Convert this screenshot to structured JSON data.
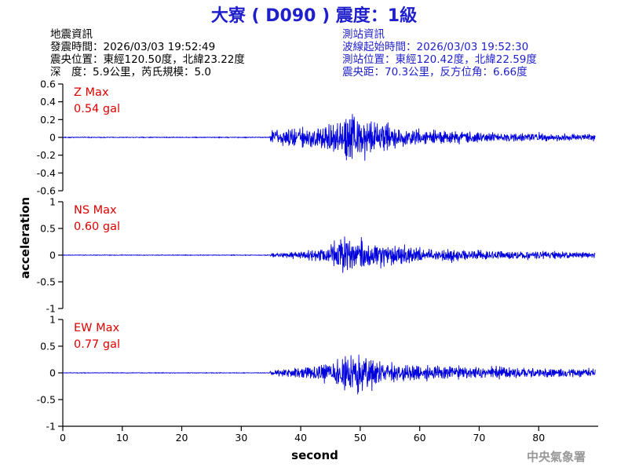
{
  "header": {
    "title": "大寮 ( D090 ) 震度：1級",
    "quake_info": {
      "heading": "地震資訊",
      "origin_time": "發震時間：2026/03/03 19:52:49",
      "epicenter": "震央位置：東經120.50度，北緯23.22度",
      "depth_magnitude": "深　度：5.9公里，芮氏規模：5.0"
    },
    "station_info": {
      "heading": "測站資訊",
      "wave_start": "波線起始時間：2026/03/03 19:52:30",
      "station_location": "測站位置：東經120.42度，北緯22.59度",
      "distance_azimuth": "震央距：70.3公里，反方位角：6.66度"
    }
  },
  "footer": {
    "agency": "中央氣象署"
  },
  "colors": {
    "title": "#1f1fcc",
    "info_left": "#000000",
    "info_right": "#1f1fcc",
    "trace": "#0000dd",
    "max_label": "#dd0000",
    "footer": "#999999"
  },
  "chart_data": {
    "type": "line",
    "xlabel": "second",
    "ylabel": "acceleration",
    "xlim": [
      0,
      90
    ],
    "x_ticks": [
      "0",
      "10",
      "20",
      "30",
      "40",
      "50",
      "60",
      "70",
      "80"
    ],
    "x_tick_values": [
      0,
      10,
      20,
      30,
      40,
      50,
      60,
      70,
      80
    ],
    "wave_onset_s": 34.8,
    "peak_time_s": 49.5,
    "panels": [
      {
        "component": "Z",
        "max_label": "Z Max",
        "max_value": "0.54 gal",
        "ylim": [
          -0.6,
          0.6
        ],
        "y_ticks": [
          "0.6",
          "0.4",
          "0.2",
          "0",
          "-0.2",
          "-0.4",
          "-0.6"
        ],
        "y_tick_values": [
          0.6,
          0.4,
          0.2,
          0,
          -0.2,
          -0.4,
          -0.6
        ],
        "pre_noise": 0.008,
        "envelope": [
          [
            34.8,
            0.15
          ],
          [
            38,
            0.18
          ],
          [
            42,
            0.22
          ],
          [
            46,
            0.32
          ],
          [
            49,
            0.54
          ],
          [
            52,
            0.35
          ],
          [
            56,
            0.2
          ],
          [
            62,
            0.13
          ],
          [
            70,
            0.1
          ],
          [
            80,
            0.08
          ],
          [
            89.5,
            0.07
          ]
        ]
      },
      {
        "component": "NS",
        "max_label": "NS Max",
        "max_value": "0.60 gal",
        "ylim": [
          -1,
          1
        ],
        "y_ticks": [
          "1",
          "0.5",
          "0",
          "-0.5",
          "-1"
        ],
        "y_tick_values": [
          1,
          0.5,
          0,
          -0.5,
          -1
        ],
        "pre_noise": 0.01,
        "envelope": [
          [
            34.8,
            0.05
          ],
          [
            38,
            0.1
          ],
          [
            42,
            0.18
          ],
          [
            45,
            0.35
          ],
          [
            48,
            0.6
          ],
          [
            51,
            0.45
          ],
          [
            55,
            0.32
          ],
          [
            60,
            0.22
          ],
          [
            70,
            0.15
          ],
          [
            80,
            0.12
          ],
          [
            89.5,
            0.1
          ]
        ]
      },
      {
        "component": "EW",
        "max_label": "EW Max",
        "max_value": "0.77 gal",
        "ylim": [
          -1,
          1
        ],
        "y_ticks": [
          "1",
          "0.5",
          "0",
          "-0.5",
          "-1"
        ],
        "y_tick_values": [
          1,
          0.5,
          0,
          -0.5,
          -1
        ],
        "pre_noise": 0.01,
        "envelope": [
          [
            34.8,
            0.08
          ],
          [
            38,
            0.12
          ],
          [
            42,
            0.2
          ],
          [
            46,
            0.42
          ],
          [
            49.5,
            0.77
          ],
          [
            52,
            0.45
          ],
          [
            56,
            0.32
          ],
          [
            62,
            0.25
          ],
          [
            70,
            0.2
          ],
          [
            80,
            0.16
          ],
          [
            89.5,
            0.14
          ]
        ]
      }
    ]
  }
}
